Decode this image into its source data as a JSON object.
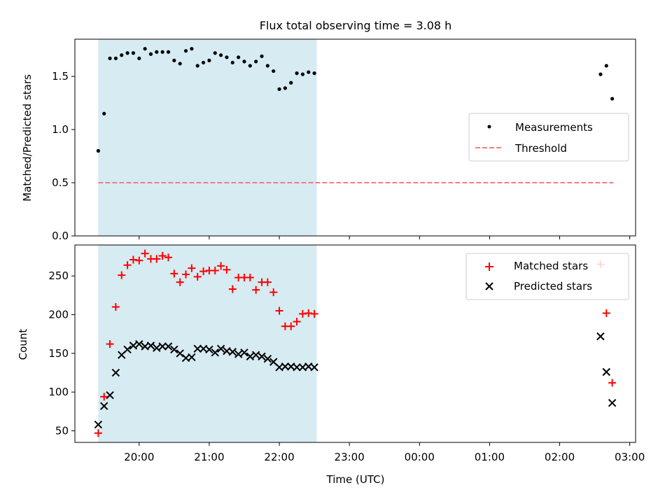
{
  "chart_data": [
    {
      "type": "scatter",
      "title": "Flux total observing time = 3.08 h",
      "xlabel": "",
      "ylabel": "Matched/Predicted stars",
      "ylim": [
        0,
        1.85
      ],
      "yticks": [
        0.0,
        0.5,
        1.0,
        1.5
      ],
      "yticklabels": [
        "0.0",
        "0.5",
        "1.0",
        "1.5"
      ],
      "xlim_minutes": [
        1145,
        1625
      ],
      "highlight_span_minutes": [
        1165,
        1352
      ],
      "legend": {
        "position": "center-right",
        "entries": [
          "Measurements",
          "Threshold"
        ]
      },
      "threshold": {
        "value": 0.5,
        "x_start": 1165,
        "x_end": 1606,
        "color": "#f08080"
      },
      "series": [
        {
          "name": "Measurements",
          "color": "#000000",
          "x": [
            1165,
            1170,
            1175,
            1180,
            1185,
            1190,
            1195,
            1200,
            1205,
            1210,
            1215,
            1220,
            1225,
            1230,
            1235,
            1240,
            1245,
            1250,
            1255,
            1260,
            1265,
            1270,
            1275,
            1280,
            1285,
            1290,
            1295,
            1300,
            1305,
            1310,
            1315,
            1320,
            1325,
            1330,
            1335,
            1340,
            1345,
            1350,
            1595,
            1600,
            1605
          ],
          "y": [
            0.8,
            1.15,
            1.67,
            1.67,
            1.7,
            1.72,
            1.72,
            1.67,
            1.76,
            1.71,
            1.73,
            1.73,
            1.73,
            1.65,
            1.62,
            1.74,
            1.76,
            1.6,
            1.63,
            1.65,
            1.72,
            1.7,
            1.68,
            1.63,
            1.68,
            1.64,
            1.6,
            1.64,
            1.69,
            1.6,
            1.55,
            1.38,
            1.39,
            1.44,
            1.53,
            1.52,
            1.54,
            1.53,
            1.52,
            1.6,
            1.29
          ]
        }
      ]
    },
    {
      "type": "scatter",
      "title": "",
      "xlabel": "Time (UTC)",
      "ylabel": "Count",
      "ylim": [
        35,
        290
      ],
      "yticks": [
        50,
        100,
        150,
        200,
        250
      ],
      "yticklabels": [
        "50",
        "100",
        "150",
        "200",
        "250"
      ],
      "xlim_minutes": [
        1145,
        1625
      ],
      "xticks_minutes": [
        1200,
        1260,
        1320,
        1380,
        1440,
        1500,
        1560,
        1620
      ],
      "xticklabels": [
        "20:00",
        "21:00",
        "22:00",
        "23:00",
        "00:00",
        "01:00",
        "02:00",
        "03:00"
      ],
      "highlight_span_minutes": [
        1165,
        1352
      ],
      "legend": {
        "position": "top-right",
        "entries": [
          "Matched stars",
          "Predicted stars"
        ]
      },
      "series": [
        {
          "name": "Matched stars",
          "marker": "+",
          "color": "#ff0000",
          "x": [
            1165,
            1170,
            1175,
            1180,
            1185,
            1190,
            1195,
            1200,
            1205,
            1210,
            1215,
            1220,
            1225,
            1230,
            1235,
            1240,
            1245,
            1250,
            1255,
            1260,
            1265,
            1270,
            1275,
            1280,
            1285,
            1290,
            1295,
            1300,
            1305,
            1310,
            1315,
            1320,
            1325,
            1330,
            1335,
            1340,
            1345,
            1350,
            1595,
            1600,
            1605
          ],
          "y": [
            47,
            94,
            162,
            210,
            251,
            264,
            271,
            270,
            279,
            272,
            272,
            276,
            274,
            253,
            242,
            252,
            260,
            249,
            256,
            257,
            257,
            263,
            258,
            233,
            248,
            248,
            248,
            232,
            242,
            242,
            229,
            205,
            185,
            185,
            191,
            201,
            202,
            201,
            265,
            202,
            112
          ]
        },
        {
          "name": "Predicted stars",
          "marker": "x",
          "color": "#000000",
          "x": [
            1165,
            1170,
            1175,
            1180,
            1185,
            1190,
            1195,
            1200,
            1205,
            1210,
            1215,
            1220,
            1225,
            1230,
            1235,
            1240,
            1245,
            1250,
            1255,
            1260,
            1265,
            1270,
            1275,
            1280,
            1285,
            1290,
            1295,
            1300,
            1305,
            1310,
            1315,
            1320,
            1325,
            1330,
            1335,
            1340,
            1345,
            1350,
            1595,
            1600,
            1605
          ],
          "y": [
            58,
            82,
            96,
            125,
            148,
            155,
            160,
            162,
            159,
            160,
            157,
            159,
            159,
            155,
            150,
            144,
            145,
            156,
            156,
            155,
            151,
            156,
            153,
            152,
            149,
            151,
            146,
            148,
            146,
            143,
            139,
            132,
            133,
            133,
            132,
            132,
            133,
            132,
            172,
            126,
            86
          ]
        }
      ]
    }
  ]
}
